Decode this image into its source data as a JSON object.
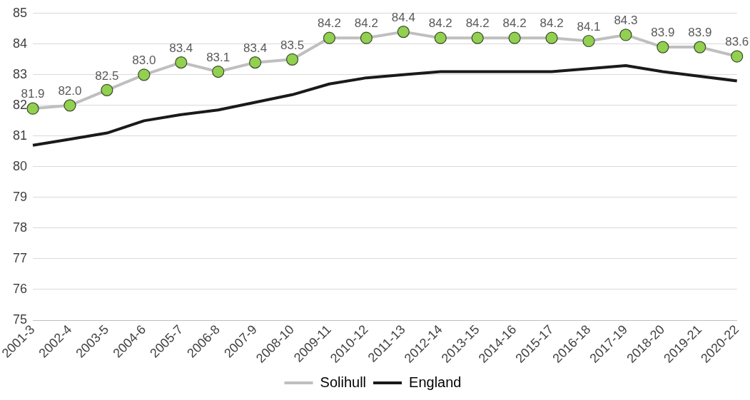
{
  "chart_data": {
    "type": "line",
    "categories": [
      "2001-3",
      "2002-4",
      "2003-5",
      "2004-6",
      "2005-7",
      "2006-8",
      "2007-9",
      "2008-10",
      "2009-11",
      "2010-12",
      "2011-13",
      "2012-14",
      "2013-15",
      "2014-16",
      "2015-17",
      "2016-18",
      "2017-19",
      "2018-20",
      "2019-21",
      "2020-22"
    ],
    "series": [
      {
        "name": "Solihull",
        "color": "#bfbfbf",
        "marker": "circle",
        "values": [
          81.9,
          82.0,
          82.5,
          83.0,
          83.4,
          83.1,
          83.4,
          83.5,
          84.2,
          84.2,
          84.4,
          84.2,
          84.2,
          84.2,
          84.2,
          84.1,
          84.3,
          83.9,
          83.9,
          83.6
        ],
        "value_labels": [
          "81.9",
          "82.0",
          "82.5",
          "83.0",
          "83.4",
          "83.1",
          "83.4",
          "83.5",
          "84.2",
          "84.2",
          "84.4",
          "84.2",
          "84.2",
          "84.2",
          "84.2",
          "84.1",
          "84.3",
          "83.9",
          "83.9",
          "83.6"
        ]
      },
      {
        "name": "England",
        "color": "#1a1a1a",
        "marker": "none",
        "values": [
          80.7,
          80.9,
          81.1,
          81.5,
          81.7,
          81.85,
          82.1,
          82.35,
          82.7,
          82.9,
          83.0,
          83.1,
          83.1,
          83.1,
          83.1,
          83.2,
          83.3,
          83.1,
          82.95,
          82.8
        ]
      }
    ],
    "ylim": [
      75,
      85
    ],
    "yticks": [
      75,
      76,
      77,
      78,
      79,
      80,
      81,
      82,
      83,
      84,
      85
    ],
    "grid": "y",
    "legend": "bottom"
  }
}
